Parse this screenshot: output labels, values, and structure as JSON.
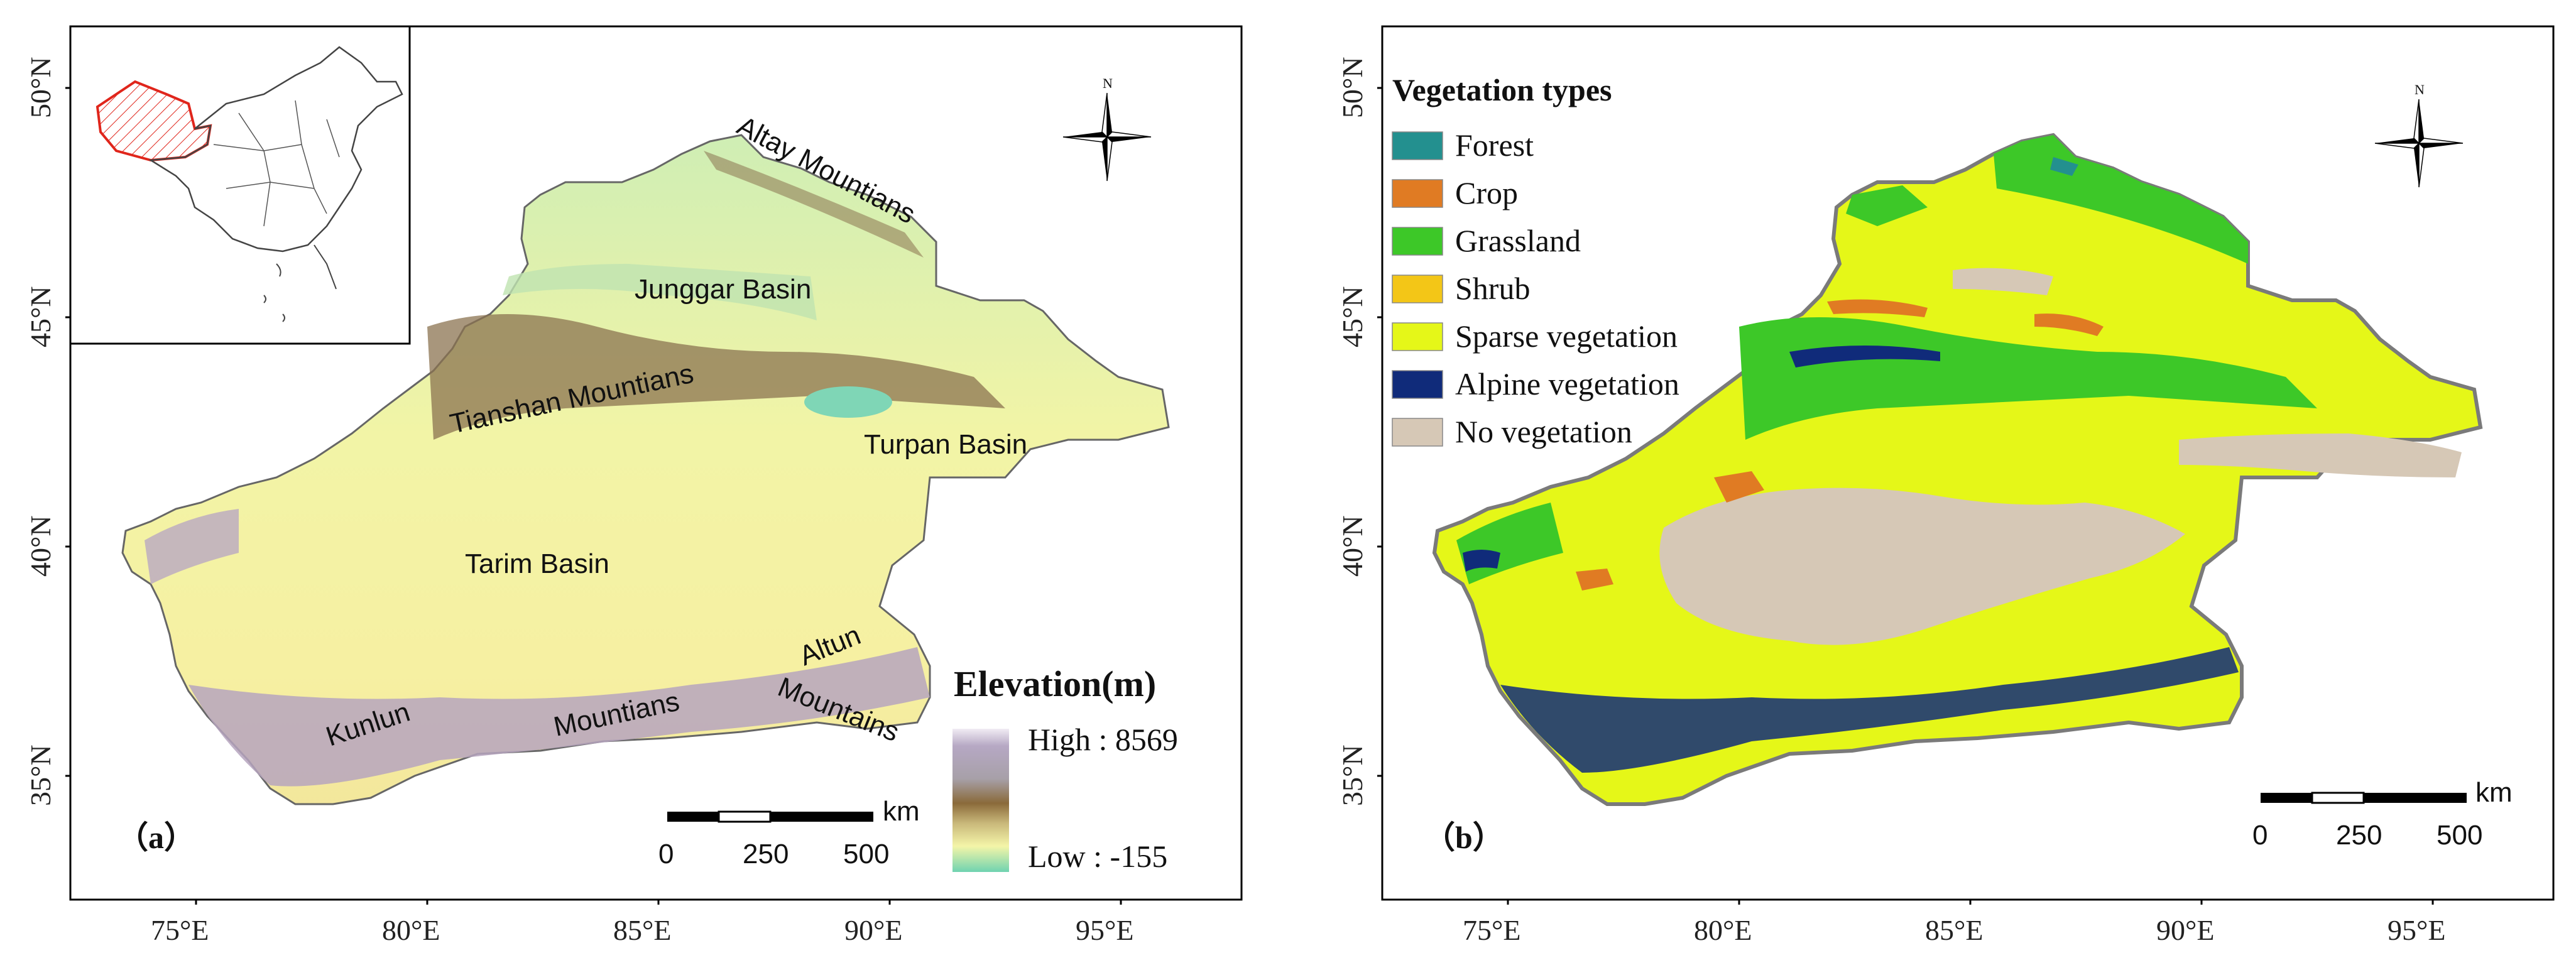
{
  "axes": {
    "lat_labels": [
      "50°N",
      "45°N",
      "40°N",
      "35°N"
    ],
    "lon_labels": [
      "75°E",
      "80°E",
      "85°E",
      "90°E",
      "95°E"
    ]
  },
  "panel_a": {
    "letter": "（a）",
    "north": "N",
    "places": {
      "altay": "Altay Mountians",
      "junggar": "Junggar Basin",
      "tianshan": "Tianshan Mountians",
      "turpan": "Turpan Basin",
      "tarim": "Tarim Basin",
      "altun": "Altun",
      "altun2": "Mountains",
      "kunlun": "Kunlun",
      "kunlun2": "Mountians"
    },
    "elevation": {
      "title": "Elevation(m)",
      "high": "High : 8569",
      "low": "Low : -155"
    },
    "scale": {
      "unit": "km",
      "labels": [
        "0",
        "250",
        "500"
      ]
    },
    "colors": {
      "low": "#6fd3b0",
      "mid_low": "#f4f5a8",
      "mid": "#8a6a3a",
      "high": "#e8dfee",
      "inset_highlight": "#e0251b"
    }
  },
  "panel_b": {
    "letter": "（b）",
    "north": "N",
    "legend": {
      "title": "Vegetation types",
      "items": [
        {
          "label": "Forest",
          "color": "#23908f"
        },
        {
          "label": "Crop",
          "color": "#e07b23"
        },
        {
          "label": "Grassland",
          "color": "#3dc828"
        },
        {
          "label": "Shrub",
          "color": "#f3c617"
        },
        {
          "label": "Sparse vegetation",
          "color": "#e5f718"
        },
        {
          "label": "Alpine vegetation",
          "color": "#102b7a"
        },
        {
          "label": "No vegetation",
          "color": "#d6c8b6"
        }
      ]
    },
    "scale": {
      "unit": "km",
      "labels": [
        "0",
        "250",
        "500"
      ]
    }
  }
}
